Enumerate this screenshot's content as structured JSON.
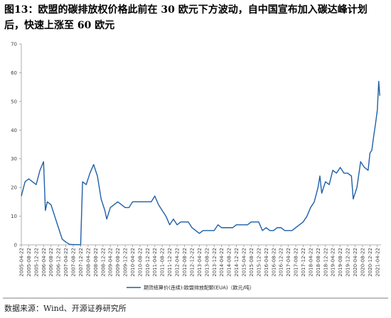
{
  "chart_data": {
    "type": "line",
    "title": "图13：欧盟的碳排放权价格此前在 30 欧元下方波动，自中国宣布加入碳达峰计划",
    "subtitle": "后，快速上涨至 60 欧元",
    "source": "数据来源：Wind、开源证券研究所",
    "x": [
      "2005-04-22",
      "2005-06-22",
      "2005-08-22",
      "2005-10-22",
      "2005-12-22",
      "2006-02-22",
      "2006-04-22",
      "2006-05-22",
      "2006-06-22",
      "2006-08-22",
      "2006-10-22",
      "2006-12-22",
      "2007-02-22",
      "2007-04-22",
      "2007-06-22",
      "2007-08-22",
      "2007-10-22",
      "2007-12-22",
      "2008-01-22",
      "2008-03-22",
      "2008-05-22",
      "2008-07-22",
      "2008-09-22",
      "2008-11-22",
      "2009-01-22",
      "2009-02-22",
      "2009-04-22",
      "2009-06-22",
      "2009-08-22",
      "2009-10-22",
      "2009-12-22",
      "2010-02-22",
      "2010-04-22",
      "2010-06-22",
      "2010-08-22",
      "2010-10-22",
      "2010-12-22",
      "2011-02-22",
      "2011-04-22",
      "2011-06-22",
      "2011-08-22",
      "2011-10-22",
      "2011-12-22",
      "2012-02-22",
      "2012-04-22",
      "2012-06-22",
      "2012-08-22",
      "2012-10-22",
      "2012-12-22",
      "2013-02-22",
      "2013-04-22",
      "2013-06-22",
      "2013-08-22",
      "2013-10-22",
      "2013-12-22",
      "2014-02-22",
      "2014-04-22",
      "2014-06-22",
      "2014-08-22",
      "2014-10-22",
      "2014-12-22",
      "2015-02-22",
      "2015-04-22",
      "2015-06-22",
      "2015-08-22",
      "2015-10-22",
      "2015-12-22",
      "2016-02-22",
      "2016-04-22",
      "2016-06-22",
      "2016-08-22",
      "2016-10-22",
      "2016-12-22",
      "2017-02-22",
      "2017-04-22",
      "2017-06-22",
      "2017-08-22",
      "2017-10-22",
      "2017-12-22",
      "2018-02-22",
      "2018-04-22",
      "2018-06-22",
      "2018-08-22",
      "2018-09-22",
      "2018-10-22",
      "2018-12-22",
      "2019-02-22",
      "2019-04-22",
      "2019-06-22",
      "2019-08-22",
      "2019-10-22",
      "2019-12-22",
      "2020-02-22",
      "2020-03-22",
      "2020-05-22",
      "2020-07-22",
      "2020-09-22",
      "2020-11-22",
      "2020-12-22",
      "2021-01-22",
      "2021-02-22",
      "2021-03-22",
      "2021-04-22",
      "2021-05-15",
      "2021-06-01"
    ],
    "series": [
      {
        "name": "期货结算价(连续):欧盟排放配额(EUA)（欧元/吨）",
        "color": "#1f5fa8",
        "values": [
          17,
          22,
          23,
          22,
          21,
          26,
          29,
          12,
          15,
          14,
          10,
          6,
          2,
          1,
          0.2,
          0.1,
          0.1,
          0.05,
          22,
          21,
          25,
          28,
          24,
          16,
          12,
          9,
          13,
          14,
          15,
          14,
          13,
          13,
          15,
          15,
          15,
          15,
          15,
          15,
          17,
          14,
          12,
          10,
          7,
          9,
          7,
          8,
          8,
          8,
          6,
          5,
          4,
          5,
          5,
          5,
          5,
          7,
          6,
          6,
          6,
          6,
          7,
          7,
          7,
          7,
          8,
          8,
          8,
          5,
          6,
          5,
          5,
          6,
          6,
          5,
          5,
          5,
          6,
          7,
          8,
          10,
          13,
          15,
          20,
          24,
          18,
          22,
          21,
          26,
          25,
          27,
          25,
          25,
          24,
          16,
          20,
          29,
          27,
          26,
          32,
          33,
          38,
          42,
          47,
          57,
          52
        ]
      }
    ],
    "xlim": [
      "2005-04-22",
      "2021-06-22"
    ],
    "xticks": [
      "2005-04-22",
      "2005-08-22",
      "2005-12-22",
      "2006-04-22",
      "2006-08-22",
      "2006-12-22",
      "2007-04-22",
      "2007-08-22",
      "2007-12-22",
      "2008-04-22",
      "2008-08-22",
      "2008-12-22",
      "2009-04-22",
      "2009-08-22",
      "2009-12-22",
      "2010-04-22",
      "2010-08-22",
      "2010-12-22",
      "2011-04-22",
      "2011-08-22",
      "2011-12-22",
      "2012-04-22",
      "2012-08-22",
      "2012-12-22",
      "2013-04-22",
      "2013-08-22",
      "2013-12-22",
      "2014-04-22",
      "2014-08-22",
      "2014-12-22",
      "2015-04-22",
      "2015-08-22",
      "2015-12-22",
      "2016-04-22",
      "2016-08-22",
      "2016-12-22",
      "2017-04-22",
      "2017-08-22",
      "2017-12-22",
      "2018-04-22",
      "2018-08-22",
      "2018-12-22",
      "2019-04-22",
      "2019-08-22",
      "2019-12-22",
      "2020-04-22",
      "2020-08-22",
      "2020-12-22",
      "2021-04-22"
    ],
    "ylim": [
      0,
      70
    ],
    "yticks": [
      0,
      10,
      20,
      30,
      40,
      50,
      60,
      70
    ],
    "grid": false,
    "legend": "bottom"
  }
}
